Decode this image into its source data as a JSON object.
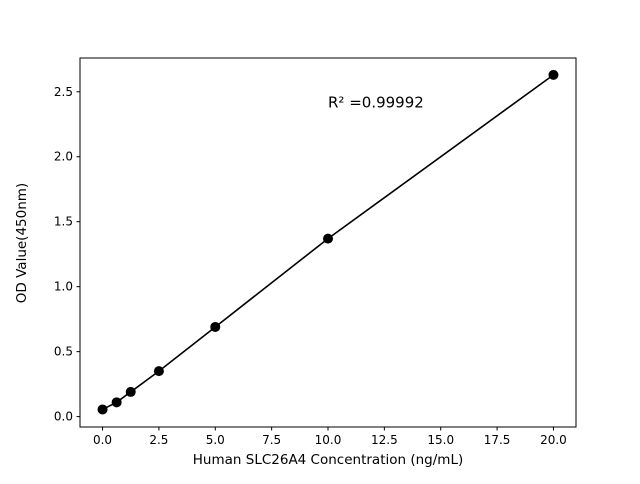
{
  "figure": {
    "background": "#ffffff"
  },
  "chart_data": {
    "type": "scatter",
    "title": "",
    "xlabel": "Human SLC26A4 Concentration (ng/mL)",
    "ylabel": "OD Value(450nm)",
    "x": [
      0,
      0.625,
      1.25,
      2.5,
      5,
      10,
      20
    ],
    "y": [
      0.055,
      0.11,
      0.19,
      0.35,
      0.69,
      1.37,
      2.63
    ],
    "fit_line": true,
    "annotation": {
      "text": "R² =0.99992",
      "x": 10.0,
      "y": 2.38
    },
    "xticks": {
      "values": [
        0,
        2.5,
        5,
        7.5,
        10,
        12.5,
        15,
        17.5,
        20
      ],
      "labels": [
        "0.0",
        "2.5",
        "5.0",
        "7.5",
        "10.0",
        "12.5",
        "15.0",
        "17.5",
        "20.0"
      ]
    },
    "yticks": {
      "values": [
        0,
        0.5,
        1,
        1.5,
        2,
        2.5
      ],
      "labels": [
        "0.0",
        "0.5",
        "1.0",
        "1.5",
        "2.0",
        "2.5"
      ]
    },
    "xlim": [
      -1,
      21
    ],
    "ylim": [
      -0.08,
      2.76
    ],
    "grid": false,
    "legend": null,
    "line_color": "#000000",
    "marker_color": "#000000"
  }
}
